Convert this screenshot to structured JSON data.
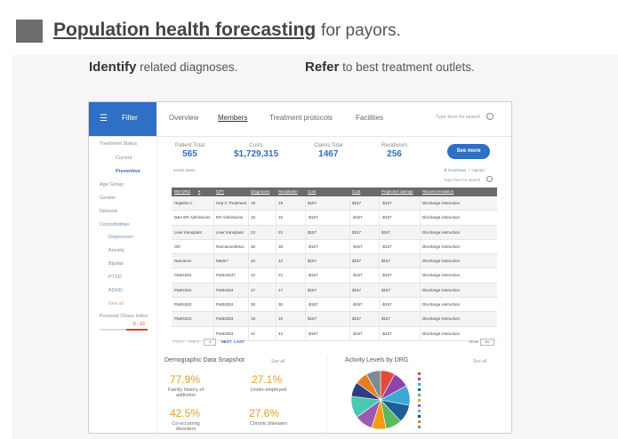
{
  "slide": {
    "title_strong": "Population health forecasting",
    "title_rest": "for payors.",
    "sub1_strong": "Identify",
    "sub1_rest": "related diagnoses.",
    "sub2_strong": "Refer",
    "sub2_rest": "to best treatment outlets."
  },
  "app": {
    "filter_label": "Filter",
    "nav": [
      "Overview",
      "Members",
      "Treatment protocols",
      "Facilities"
    ],
    "search_placeholder": "Type here for search",
    "sidebar": {
      "treatment_status": "Treatment Status",
      "current": "Current",
      "preventive": "Preventive",
      "age_group": "Age Group",
      "gender": "Gender",
      "network": "Network",
      "comorbidities": "Comorbidities",
      "comorbidity_items": [
        "Depression",
        "Anxiety",
        "Bipolar",
        "PTSD",
        "ADHD"
      ],
      "see_all": "See all",
      "personal_chaos": "Personal Chaos Index",
      "chaos_range": "6 - 10"
    },
    "stats": [
      {
        "label": "Patient Total",
        "value": "565"
      },
      {
        "label": "Costs",
        "value": "$1,729,315"
      },
      {
        "label": "Claims Total",
        "value": "1467"
      },
      {
        "label": "Recidivism",
        "value": "256"
      }
    ],
    "see_more": "See more",
    "items_count": "24153 items",
    "download": "Download",
    "upload": "Upload",
    "table_search": "Type here for search",
    "table": {
      "headers": [
        "MS-DRG",
        "CPT",
        "Diagnoses",
        "Recidivism",
        "Cost",
        "Cost",
        "Projected savings",
        "Recommendation"
      ],
      "rows": [
        [
          "Hepititis C",
          "Hep C Treatment",
          "19",
          "19",
          "$157",
          "$157",
          "-$157",
          "Discharge instruction"
        ],
        [
          "D&A ER Admissions",
          "ER Admissions",
          "15",
          "15",
          "-$157",
          "-$157",
          "-$157",
          "Discharge instruction"
        ],
        [
          "Liver transplant",
          "Liver transplant",
          "22",
          "22",
          "$157",
          "$157",
          "$157",
          "Discharge instruction"
        ],
        [
          "OD",
          "Narcanon/detox",
          "35",
          "35",
          "-$157",
          "-$157",
          "-$157",
          "Discharge instruction"
        ],
        [
          "Narcanon",
          "Meds?",
          "42",
          "42",
          "$157",
          "$157",
          "$157",
          "Discharge instruction"
        ],
        [
          "Pat04253",
          "Pat04253?",
          "22",
          "22",
          "-$157",
          "-$157",
          "-$157",
          "Discharge instruction"
        ],
        [
          "Pat04253",
          "Pat04253",
          "17",
          "17",
          "$157",
          "$157",
          "$157",
          "Discharge instruction"
        ],
        [
          "Pat04253",
          "Pat04253",
          "30",
          "30",
          "-$157",
          "-$157",
          "-$157",
          "Discharge instruction"
        ],
        [
          "Pat04253",
          "Pat04253",
          "15",
          "15",
          "$157",
          "$157",
          "$157",
          "Discharge instruction"
        ],
        [
          "",
          "Pat04253",
          "42",
          "42",
          "-$157",
          "-$157",
          "-$157",
          "Discharge instruction"
        ]
      ]
    },
    "pager": {
      "first": "FIRST",
      "prev": "PREV",
      "page": "1",
      "next": "NEXT",
      "last": "LAST",
      "show_label": "Show",
      "show_value": "10"
    },
    "demo": {
      "title": "Demographic Data Snapshot",
      "see_all": "See all",
      "stats": [
        {
          "value": "77.9%",
          "label": "Family history of addiction"
        },
        {
          "value": "27.1%",
          "label": "Under-employed"
        },
        {
          "value": "42.5%",
          "label": "Co-occurring disorders"
        },
        {
          "value": "27.6%",
          "label": "Chronic diseases"
        }
      ]
    },
    "activity": {
      "title": "Activity Levels by DRG",
      "see_all": "See all"
    },
    "colors": {
      "accent": "#2f6fc4",
      "title_marker": "#6d6d6d",
      "highlight": "#e5a024",
      "pie": [
        "#e24b3b",
        "#8e44ad",
        "#3fa7d6",
        "#1f5f99",
        "#5cb85c",
        "#f39c12",
        "#9b59b6",
        "#48c9b0",
        "#2c3e80",
        "#e67e22",
        "#7f8c8d"
      ]
    }
  },
  "chart_data": {
    "type": "pie",
    "title": "Activity Levels by DRG",
    "slices": [
      {
        "label": "",
        "value": 8
      },
      {
        "label": "",
        "value": 9
      },
      {
        "label": "",
        "value": 11
      },
      {
        "label": "",
        "value": 10
      },
      {
        "label": "",
        "value": 9
      },
      {
        "label": "",
        "value": 8
      },
      {
        "label": "",
        "value": 10
      },
      {
        "label": "",
        "value": 12
      },
      {
        "label": "",
        "value": 8
      },
      {
        "label": "",
        "value": 7
      },
      {
        "label": "",
        "value": 8
      }
    ]
  }
}
